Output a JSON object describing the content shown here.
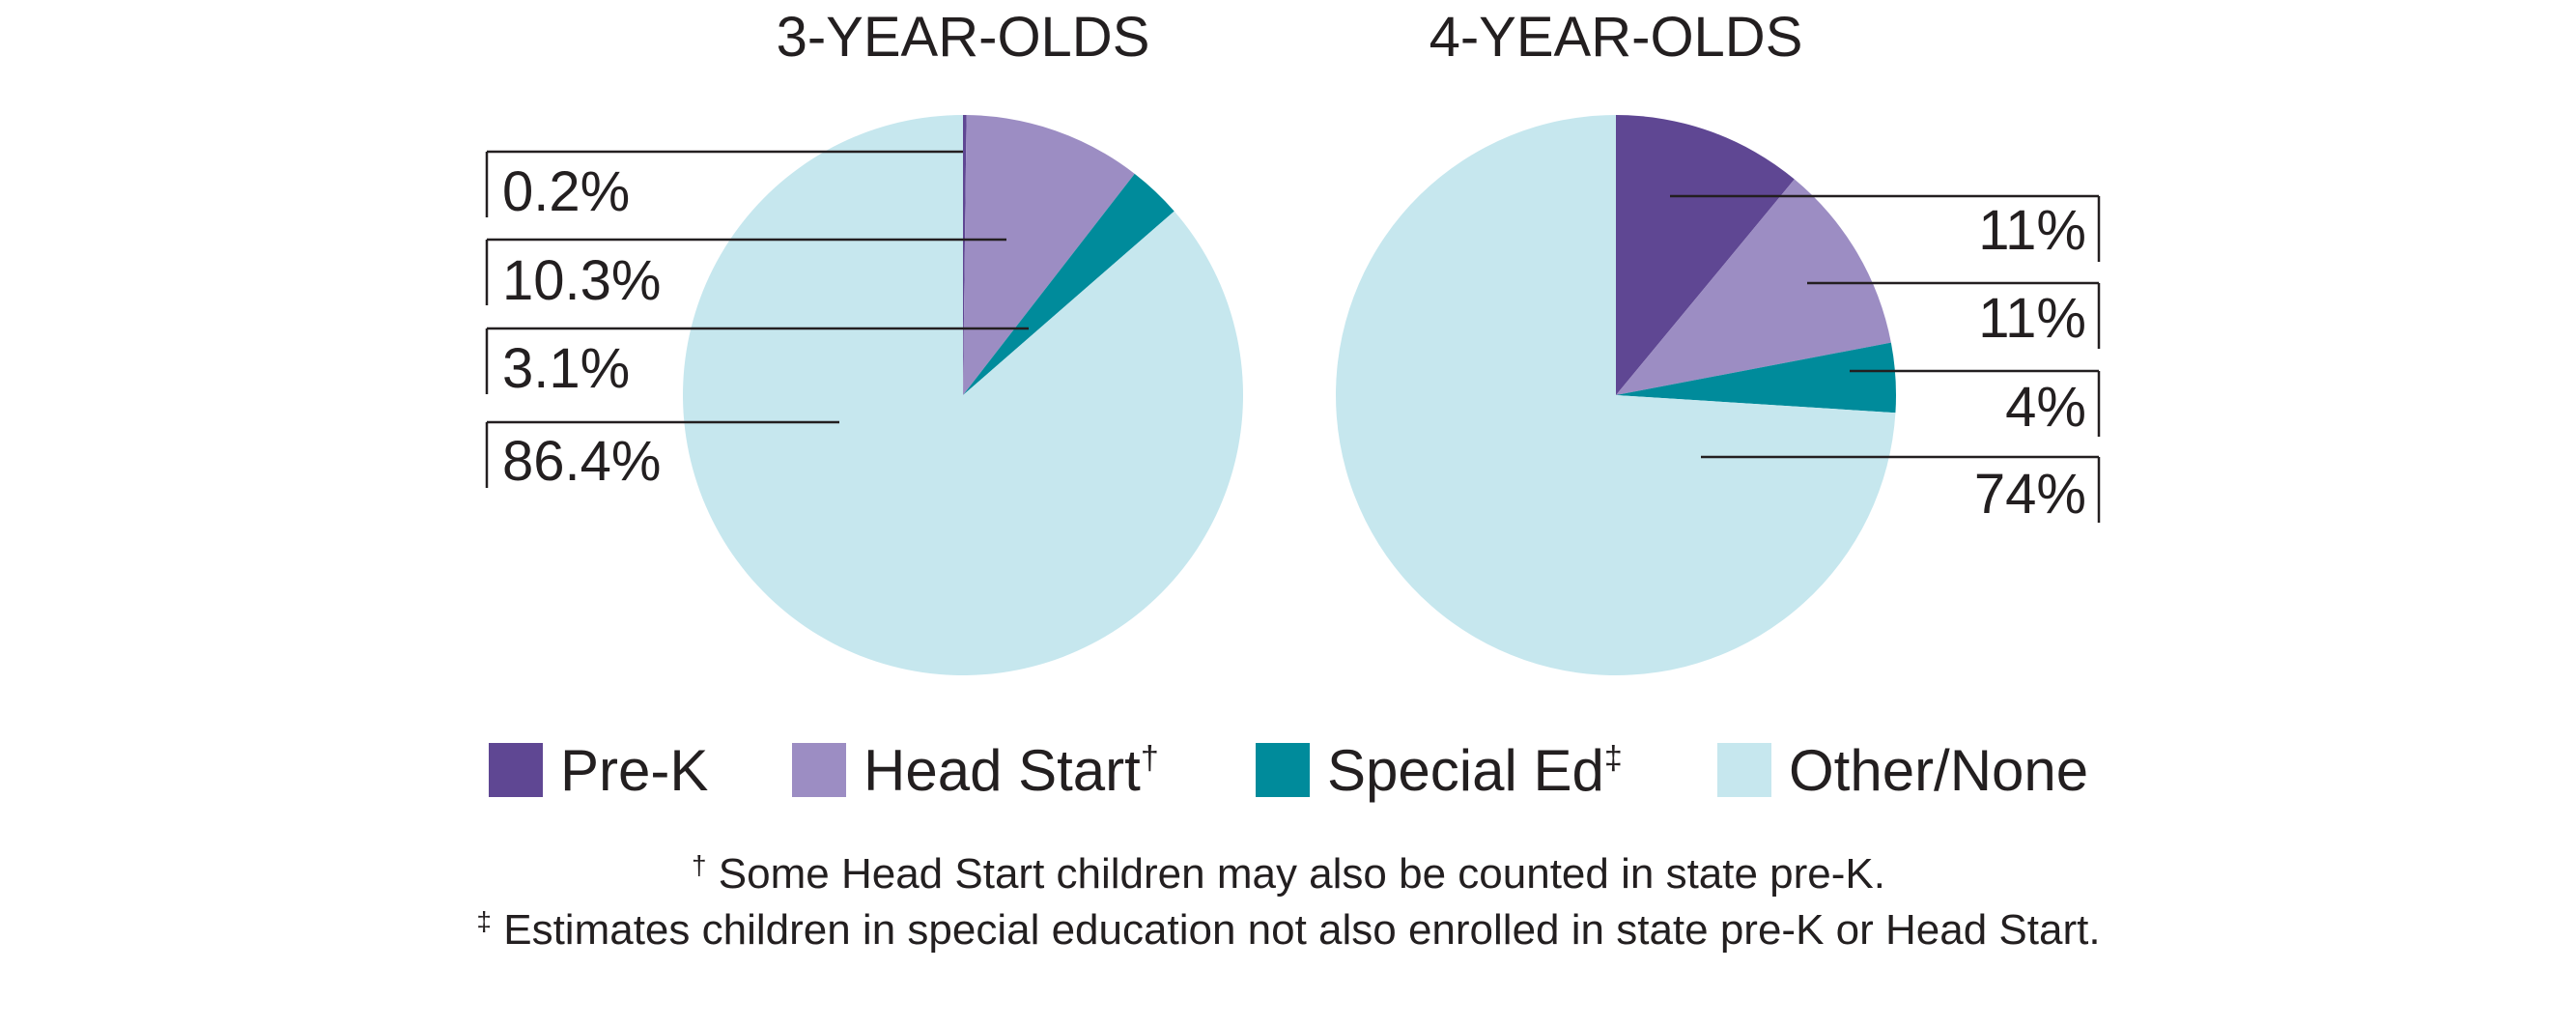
{
  "colors": {
    "pre_k": "#5f4793",
    "head_start": "#9c8dc3",
    "special_ed": "#008b9b",
    "other_none": "#c6e7ee",
    "text": "#231f20"
  },
  "legend": [
    {
      "key": "pre_k",
      "label": "Pre-K",
      "mark": ""
    },
    {
      "key": "head_start",
      "label": "Head Start",
      "mark": "†"
    },
    {
      "key": "special_ed",
      "label": "Special Ed",
      "mark": "‡"
    },
    {
      "key": "other_none",
      "label": "Other/None",
      "mark": ""
    }
  ],
  "footnotes": [
    {
      "mark": "†",
      "text": " Some Head Start children may also be counted in state pre-K."
    },
    {
      "mark": "‡",
      "text": " Estimates children in special education not also enrolled in state pre-K or Head Start."
    }
  ],
  "chart_data": [
    {
      "type": "pie",
      "title": "3-YEAR-OLDS",
      "label_side": "left",
      "slices": [
        {
          "key": "pre_k",
          "value": 0.2,
          "label": "0.2%"
        },
        {
          "key": "head_start",
          "value": 10.3,
          "label": "10.3%"
        },
        {
          "key": "special_ed",
          "value": 3.1,
          "label": "3.1%"
        },
        {
          "key": "other_none",
          "value": 86.4,
          "label": "86.4%"
        }
      ]
    },
    {
      "type": "pie",
      "title": "4-YEAR-OLDS",
      "label_side": "right",
      "slices": [
        {
          "key": "pre_k",
          "value": 11,
          "label": "11%"
        },
        {
          "key": "head_start",
          "value": 11,
          "label": "11%"
        },
        {
          "key": "special_ed",
          "value": 4,
          "label": "4%"
        },
        {
          "key": "other_none",
          "value": 74,
          "label": "74%"
        }
      ]
    }
  ]
}
